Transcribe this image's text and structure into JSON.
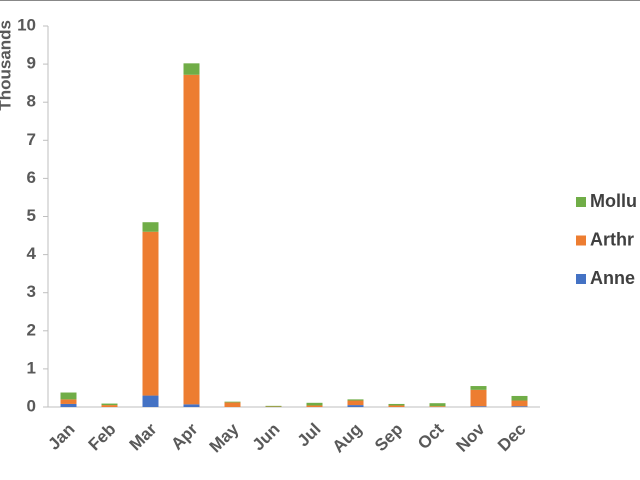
{
  "chart_data": {
    "type": "bar",
    "stacked": true,
    "y_label": "Thousands",
    "categories": [
      "Jan",
      "Feb",
      "Mar",
      "Apr",
      "May",
      "Jun",
      "Jul",
      "Aug",
      "Sep",
      "Oct",
      "Nov",
      "Dec"
    ],
    "series": [
      {
        "name": "Anne",
        "color": "#4472c4",
        "values": [
          0.08,
          0,
          0.3,
          0.07,
          0,
          0,
          0,
          0.05,
          0,
          0,
          0.02,
          0.02
        ]
      },
      {
        "name": "Arthr",
        "color": "#ed7d31",
        "values": [
          0.12,
          0.05,
          4.3,
          8.65,
          0.12,
          0.01,
          0.04,
          0.12,
          0.04,
          0.02,
          0.43,
          0.15
        ]
      },
      {
        "name": "Mollu",
        "color": "#70ad47",
        "values": [
          0.18,
          0.04,
          0.25,
          0.3,
          0.02,
          0.02,
          0.07,
          0.03,
          0.04,
          0.08,
          0.1,
          0.12
        ]
      }
    ],
    "ylim": [
      0,
      10
    ],
    "yticks": [
      0,
      1,
      2,
      3,
      4,
      5,
      6,
      7,
      8,
      9,
      10
    ]
  }
}
